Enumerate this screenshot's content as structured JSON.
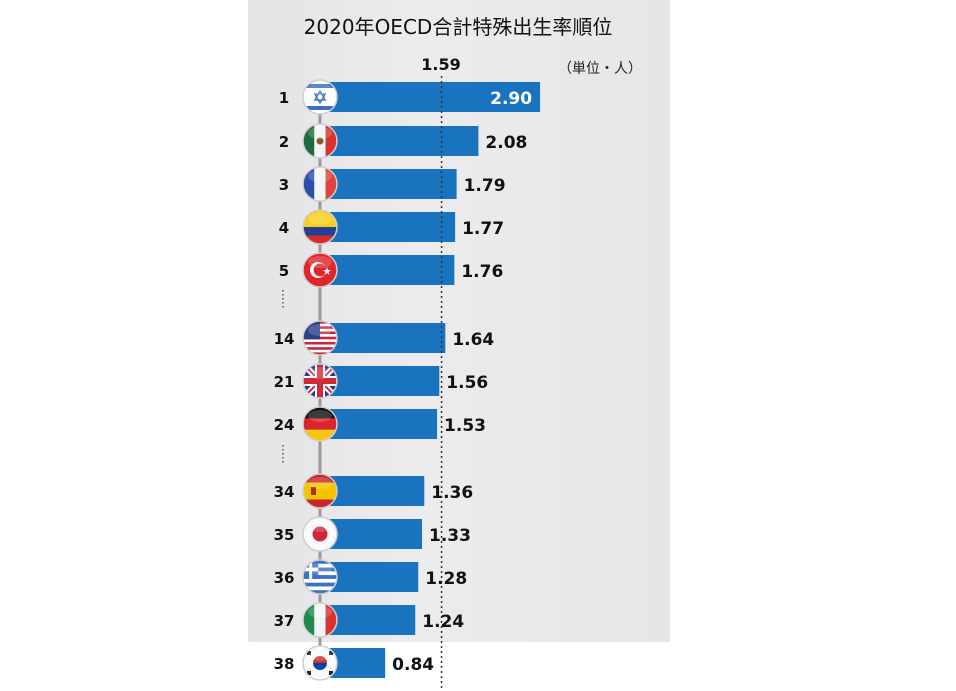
{
  "chart_data": {
    "type": "bar",
    "orientation": "horizontal",
    "title": "2020年OECD合計特殊出生率順位",
    "unit_label": "（単位・人）",
    "reference_line": {
      "value": 1.59,
      "label": "1.59"
    },
    "xlim": [
      0,
      3.0
    ],
    "colors": {
      "bar": "#1a73be",
      "label_inside": "#ffffff",
      "label_outside": "#111111"
    },
    "rows": [
      {
        "rank": "1",
        "flag": "flag-israel",
        "value": 2.9,
        "label": "2.90"
      },
      {
        "rank": "2",
        "flag": "flag-mexico",
        "value": 2.08,
        "label": "2.08"
      },
      {
        "rank": "3",
        "flag": "flag-france",
        "value": 1.79,
        "label": "1.79"
      },
      {
        "rank": "4",
        "flag": "flag-colombia",
        "value": 1.77,
        "label": "1.77"
      },
      {
        "rank": "5",
        "flag": "flag-turkey",
        "value": 1.76,
        "label": "1.76"
      },
      {
        "rank": "14",
        "flag": "flag-usa",
        "value": 1.64,
        "label": "1.64"
      },
      {
        "rank": "21",
        "flag": "flag-uk",
        "value": 1.56,
        "label": "1.56"
      },
      {
        "rank": "24",
        "flag": "flag-germany",
        "value": 1.53,
        "label": "1.53"
      },
      {
        "rank": "34",
        "flag": "flag-spain",
        "value": 1.36,
        "label": "1.36"
      },
      {
        "rank": "35",
        "flag": "flag-japan",
        "value": 1.33,
        "label": "1.33"
      },
      {
        "rank": "36",
        "flag": "flag-greece",
        "value": 1.28,
        "label": "1.28"
      },
      {
        "rank": "37",
        "flag": "flag-italy",
        "value": 1.24,
        "label": "1.24"
      },
      {
        "rank": "38",
        "flag": "flag-korea",
        "value": 0.84,
        "label": "0.84"
      }
    ]
  }
}
